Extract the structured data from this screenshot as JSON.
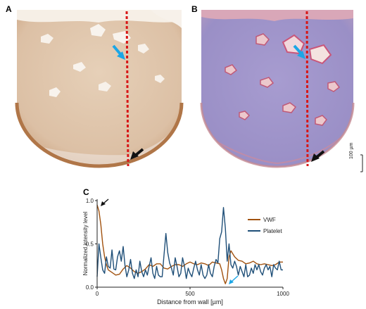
{
  "panels": {
    "a": "A",
    "b": "B",
    "c": "C"
  },
  "scale_bar": {
    "label": "100 µm"
  },
  "colors": {
    "stain_a": "#dcc0a5",
    "stain_a_edge": "#b07648",
    "stain_b": "#9a8fc6",
    "stain_b_edge": "#c48a92",
    "dashed_line": "#d81616",
    "blue_arrow": "#1ba6e6",
    "black_arrow": "#111111",
    "vwf": "#a1520f",
    "platelet": "#1f4f78"
  },
  "chart_data": {
    "type": "line",
    "xlabel": "Distance from wall [µm]",
    "ylabel": "Normalized intensity level",
    "xlim": [
      0,
      1000
    ],
    "ylim": [
      0,
      1.0
    ],
    "x_ticks": [
      0,
      500,
      1000
    ],
    "y_ticks": [
      0.0,
      0.5,
      1.0
    ],
    "y_tick_labels": [
      "0.0",
      "0.5",
      "1.0"
    ],
    "legend_position": "top-right",
    "series": [
      {
        "name": "VWF",
        "color": "#a1520f",
        "x": [
          0,
          10,
          20,
          30,
          40,
          50,
          60,
          80,
          100,
          120,
          140,
          160,
          180,
          200,
          220,
          240,
          260,
          280,
          300,
          320,
          340,
          360,
          380,
          400,
          420,
          440,
          460,
          480,
          500,
          520,
          540,
          560,
          580,
          600,
          620,
          640,
          660,
          670,
          680,
          690,
          700,
          710,
          720,
          740,
          760,
          780,
          800,
          820,
          840,
          860,
          880,
          900,
          920,
          940,
          960,
          980,
          1000
        ],
        "y": [
          0.95,
          0.88,
          0.72,
          0.5,
          0.35,
          0.26,
          0.2,
          0.17,
          0.14,
          0.15,
          0.21,
          0.25,
          0.22,
          0.18,
          0.16,
          0.18,
          0.21,
          0.26,
          0.24,
          0.27,
          0.27,
          0.22,
          0.21,
          0.24,
          0.26,
          0.26,
          0.24,
          0.27,
          0.29,
          0.27,
          0.26,
          0.28,
          0.27,
          0.25,
          0.29,
          0.28,
          0.27,
          0.2,
          0.1,
          0.04,
          0.1,
          0.35,
          0.42,
          0.35,
          0.31,
          0.3,
          0.27,
          0.28,
          0.3,
          0.27,
          0.26,
          0.27,
          0.26,
          0.25,
          0.26,
          0.29,
          0.29
        ]
      },
      {
        "name": "Platelet",
        "color": "#1f4f78",
        "x": [
          0,
          10,
          20,
          30,
          40,
          50,
          60,
          70,
          80,
          90,
          100,
          110,
          120,
          130,
          140,
          150,
          160,
          170,
          180,
          190,
          200,
          210,
          220,
          230,
          240,
          250,
          260,
          270,
          280,
          290,
          300,
          310,
          320,
          330,
          340,
          350,
          360,
          370,
          380,
          390,
          400,
          410,
          420,
          430,
          440,
          450,
          460,
          470,
          480,
          490,
          500,
          510,
          520,
          530,
          540,
          550,
          560,
          570,
          580,
          590,
          600,
          610,
          620,
          630,
          640,
          650,
          660,
          670,
          680,
          690,
          700,
          710,
          720,
          730,
          740,
          750,
          760,
          770,
          780,
          790,
          800,
          810,
          820,
          830,
          840,
          850,
          860,
          870,
          880,
          890,
          900,
          910,
          920,
          930,
          940,
          950,
          960,
          970,
          980,
          990,
          1000
        ],
        "y": [
          0.12,
          0.5,
          0.34,
          0.2,
          0.16,
          0.35,
          0.24,
          0.22,
          0.43,
          0.21,
          0.2,
          0.35,
          0.42,
          0.3,
          0.47,
          0.25,
          0.12,
          0.2,
          0.32,
          0.16,
          0.1,
          0.2,
          0.12,
          0.3,
          0.18,
          0.12,
          0.2,
          0.14,
          0.24,
          0.34,
          0.16,
          0.1,
          0.24,
          0.14,
          0.12,
          0.12,
          0.37,
          0.62,
          0.4,
          0.28,
          0.22,
          0.14,
          0.34,
          0.24,
          0.12,
          0.16,
          0.34,
          0.24,
          0.1,
          0.22,
          0.16,
          0.12,
          0.22,
          0.3,
          0.2,
          0.14,
          0.26,
          0.14,
          0.1,
          0.14,
          0.26,
          0.16,
          0.12,
          0.24,
          0.32,
          0.28,
          0.56,
          0.64,
          0.92,
          0.68,
          0.3,
          0.5,
          0.26,
          0.22,
          0.3,
          0.24,
          0.14,
          0.24,
          0.18,
          0.12,
          0.26,
          0.12,
          0.14,
          0.22,
          0.16,
          0.26,
          0.2,
          0.26,
          0.18,
          0.14,
          0.22,
          0.26,
          0.2,
          0.24,
          0.12,
          0.26,
          0.22,
          0.2,
          0.3,
          0.2,
          0.2
        ]
      }
    ]
  }
}
